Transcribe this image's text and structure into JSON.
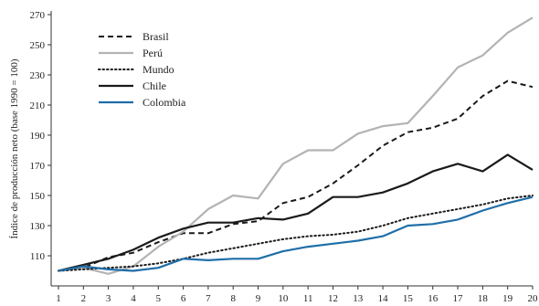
{
  "chart_data": {
    "type": "line",
    "title": "",
    "xlabel": "",
    "ylabel": "Índice de producción neto (base 1990 = 100)",
    "x": [
      1,
      2,
      3,
      4,
      5,
      6,
      7,
      8,
      9,
      10,
      11,
      12,
      13,
      14,
      15,
      16,
      17,
      18,
      19,
      20
    ],
    "x_tick_labels": [
      "1",
      "2",
      "3",
      "4",
      "5",
      "6",
      "7",
      "8",
      "9",
      "10",
      "11",
      "12",
      "13",
      "14",
      "15",
      "16",
      "17",
      "18",
      "19",
      "20"
    ],
    "ylim": [
      90,
      270
    ],
    "y_ticks": [
      110,
      130,
      150,
      170,
      190,
      210,
      230,
      250,
      270
    ],
    "grid": false,
    "legend_position": "top-left",
    "series": [
      {
        "name": "Brasil",
        "color": "#1a1a1a",
        "style": "dashed",
        "values": [
          100,
          102,
          109,
          112,
          119,
          125,
          125,
          131,
          133,
          145,
          149,
          158,
          170,
          183,
          192,
          195,
          201,
          216,
          226,
          222
        ]
      },
      {
        "name": "Perú",
        "color": "#b3b3b3",
        "style": "solid",
        "values": [
          100,
          102,
          98,
          103,
          116,
          126,
          141,
          150,
          148,
          171,
          180,
          180,
          191,
          196,
          198,
          216,
          235,
          243,
          258,
          268
        ]
      },
      {
        "name": "Mundo",
        "color": "#1a1a1a",
        "style": "dotted",
        "values": [
          100,
          101,
          102,
          103,
          105,
          108,
          112,
          115,
          118,
          121,
          123,
          124,
          126,
          130,
          135,
          138,
          141,
          144,
          148,
          150
        ]
      },
      {
        "name": "Chile",
        "color": "#1a1a1a",
        "style": "solid",
        "values": [
          100,
          104,
          108,
          114,
          122,
          128,
          132,
          132,
          135,
          134,
          138,
          149,
          149,
          152,
          158,
          166,
          171,
          166,
          177,
          167
        ]
      },
      {
        "name": "Colombia",
        "color": "#1f6ea8",
        "style": "solid",
        "values": [
          100,
          103,
          101,
          100,
          102,
          108,
          107,
          108,
          108,
          113,
          116,
          118,
          120,
          123,
          130,
          131,
          134,
          140,
          145,
          149
        ]
      }
    ]
  }
}
